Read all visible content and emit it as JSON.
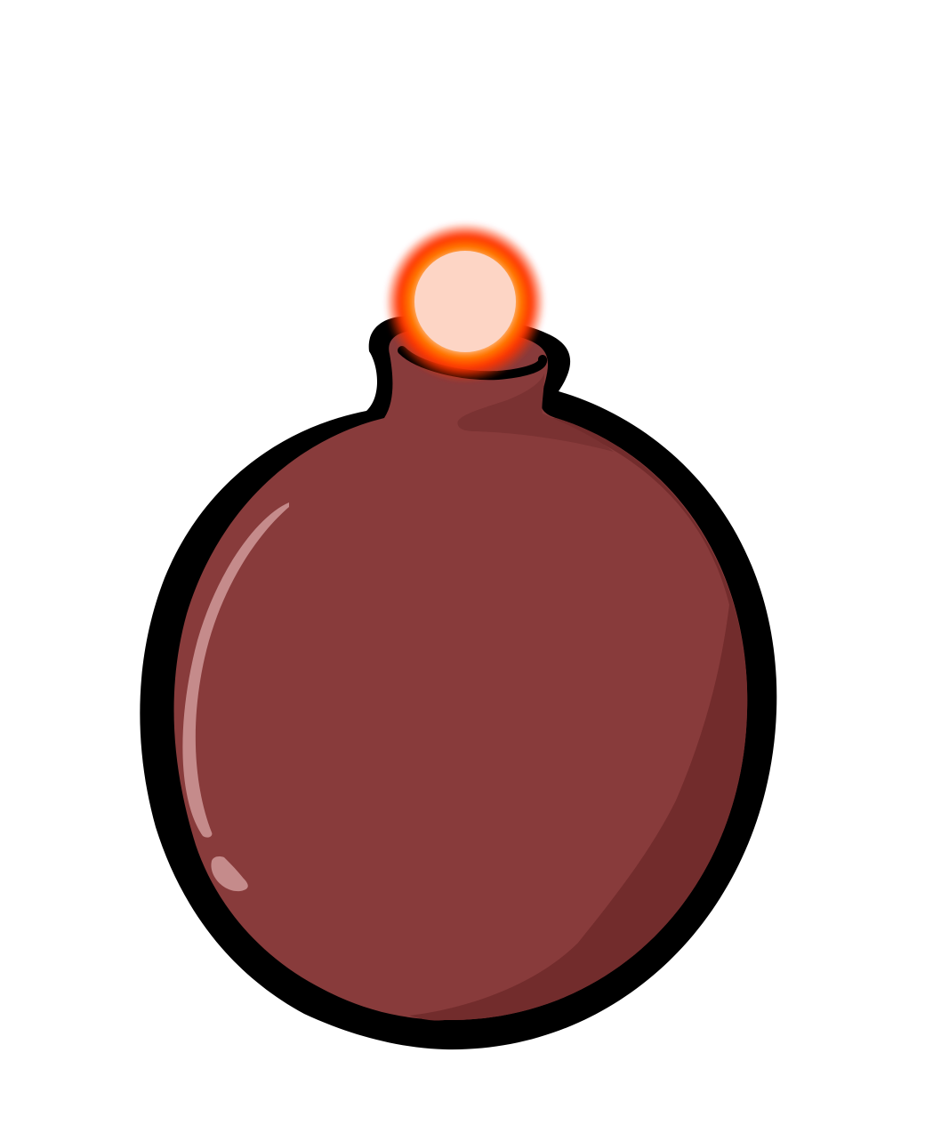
{
  "scene": {
    "subject": "bomb-icon",
    "colors": {
      "background": "#ffffff",
      "outline": "#000000",
      "body": "#883b3b",
      "body_shadow": "#722c2c",
      "neck_shadow": "#7a3232",
      "highlight": "#d9a7a7",
      "fuse_glow_outer": "#ff3300",
      "fuse_glow_mid": "#ff8800",
      "fuse_glow_core": "#fdd5c5"
    }
  }
}
